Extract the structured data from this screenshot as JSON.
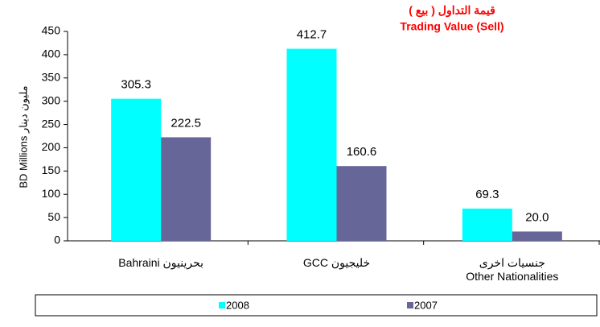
{
  "chart_data": {
    "type": "bar",
    "title": [
      "قيمة التداول  ( بيع )",
      "Trading Value (Sell)"
    ],
    "y_label": "BD Millions مليون دينار",
    "categories": [
      "Bahraini  بحرينيون",
      "GCC خليجيون",
      "جنسيات اخرى\nOther Nationalities"
    ],
    "series": [
      {
        "name": "2008",
        "color": "#00ffff",
        "values": [
          305.3,
          412.7,
          69.3
        ],
        "value_labels": [
          "305.3",
          "412.7",
          "69.3"
        ]
      },
      {
        "name": "2007",
        "color": "#666699",
        "values": [
          222.5,
          160.6,
          20
        ],
        "value_labels": [
          "222.5",
          "160.6",
          "20.0"
        ]
      }
    ],
    "ylim": [
      0,
      450
    ],
    "yticks": [
      0,
      50,
      100,
      150,
      200,
      250,
      300,
      350,
      400,
      450
    ],
    "title_color": "#ff0000",
    "legend": "bottom"
  }
}
